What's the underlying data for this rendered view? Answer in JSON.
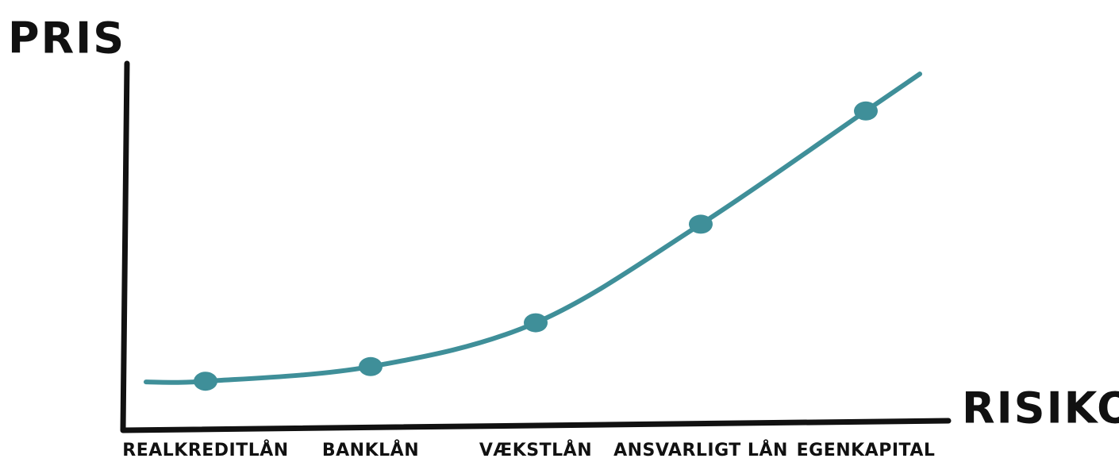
{
  "chart_data": {
    "type": "line",
    "y_label": "PRIS",
    "x_label": "RISIKO",
    "categories": [
      "REALKREDITLÅN",
      "BANKLÅN",
      "VÆKSTLÅN",
      "ANSVARLIGT LÅN",
      "EGENKAPITAL"
    ],
    "values": [
      13,
      17,
      29,
      56,
      87
    ],
    "color": "#3f8f99",
    "ylim": [
      0,
      100
    ]
  }
}
